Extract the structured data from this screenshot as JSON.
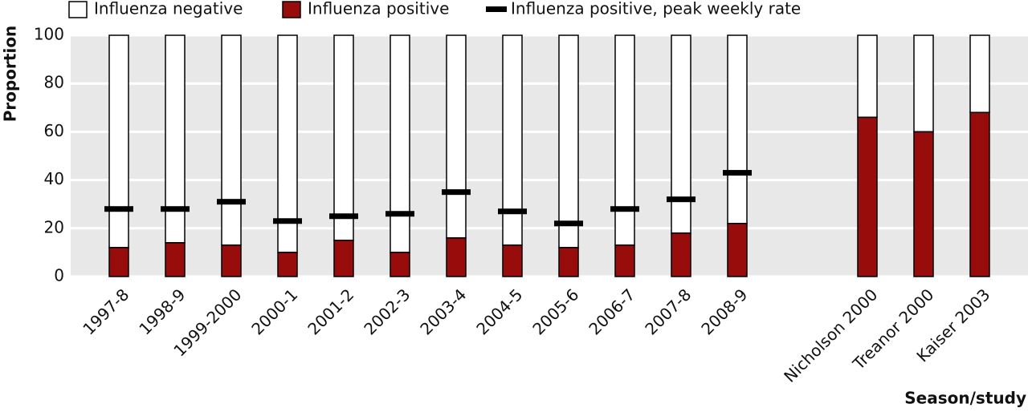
{
  "chart_data": {
    "type": "bar",
    "y_label": "Proportion",
    "x_label": "Season/study",
    "categories": [
      "1997-8",
      "1998-9",
      "1999-2000",
      "2000-1",
      "2001-2",
      "2002-3",
      "2003-4",
      "2004-5",
      "2005-6",
      "2006-7",
      "2007-8",
      "2008-9",
      "Nicholson 2000",
      "Treanor 2000",
      "Kaiser 2003"
    ],
    "series": [
      {
        "name": "Influenza negative",
        "color": "#ffffff",
        "values": [
          88,
          86,
          87,
          90,
          85,
          90,
          84,
          87,
          88,
          87,
          82,
          78,
          34,
          40,
          32
        ]
      },
      {
        "name": "Influenza positive",
        "color": "#980c0c",
        "values": [
          12,
          14,
          13,
          10,
          15,
          10,
          16,
          13,
          12,
          13,
          18,
          22,
          66,
          60,
          68
        ]
      },
      {
        "name": "Influenza positive, peak weekly rate",
        "color": "#000000",
        "values": [
          28,
          28,
          31,
          23,
          25,
          26,
          35,
          27,
          22,
          28,
          32,
          43,
          null,
          null,
          null
        ]
      }
    ],
    "ylim": [
      0,
      100
    ],
    "yticks": [
      0,
      20,
      40,
      60,
      80,
      100
    ],
    "grid": true,
    "legend": "top"
  }
}
